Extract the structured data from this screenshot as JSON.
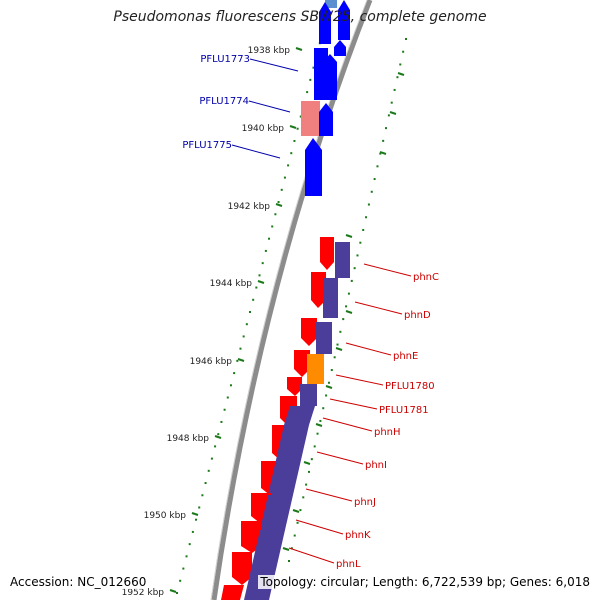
{
  "title": "Pseudomonas fluorescens SBW25, complete genome",
  "accession": "Accession: NC_012660",
  "topology": "Topology: circular; Length: 6,722,539 bp; Genes: 6,018",
  "colors": {
    "background": "#ffffff",
    "backbone": "#8c8c8c",
    "cds_blue": "#0000ff",
    "cds_red": "#ff0000",
    "cds_pink": "#f08080",
    "cds_steel": "#5a8fd0",
    "cds_orange": "#ff8c00",
    "purple": "#4b3d9a",
    "label_blue": "#0000aa",
    "label_red": "#cc0000",
    "tick_green": "#1a7a1a"
  },
  "ticks": [
    {
      "label": "1938 kbp"
    },
    {
      "label": "1940 kbp"
    },
    {
      "label": "1942 kbp"
    },
    {
      "label": "1944 kbp"
    },
    {
      "label": "1946 kbp"
    },
    {
      "label": "1948 kbp"
    },
    {
      "label": "1950 kbp"
    },
    {
      "label": "1952 kbp"
    }
  ],
  "left_labels": [
    {
      "text": "PFLU1773"
    },
    {
      "text": "PFLU1774"
    },
    {
      "text": "PFLU1775"
    }
  ],
  "right_labels": [
    {
      "text": "phnC"
    },
    {
      "text": "phnD"
    },
    {
      "text": "phnE"
    },
    {
      "text": "PFLU1780"
    },
    {
      "text": "PFLU1781"
    },
    {
      "text": "phnH"
    },
    {
      "text": "phnI"
    },
    {
      "text": "phnJ"
    },
    {
      "text": "phnK"
    },
    {
      "text": "phnL"
    }
  ]
}
